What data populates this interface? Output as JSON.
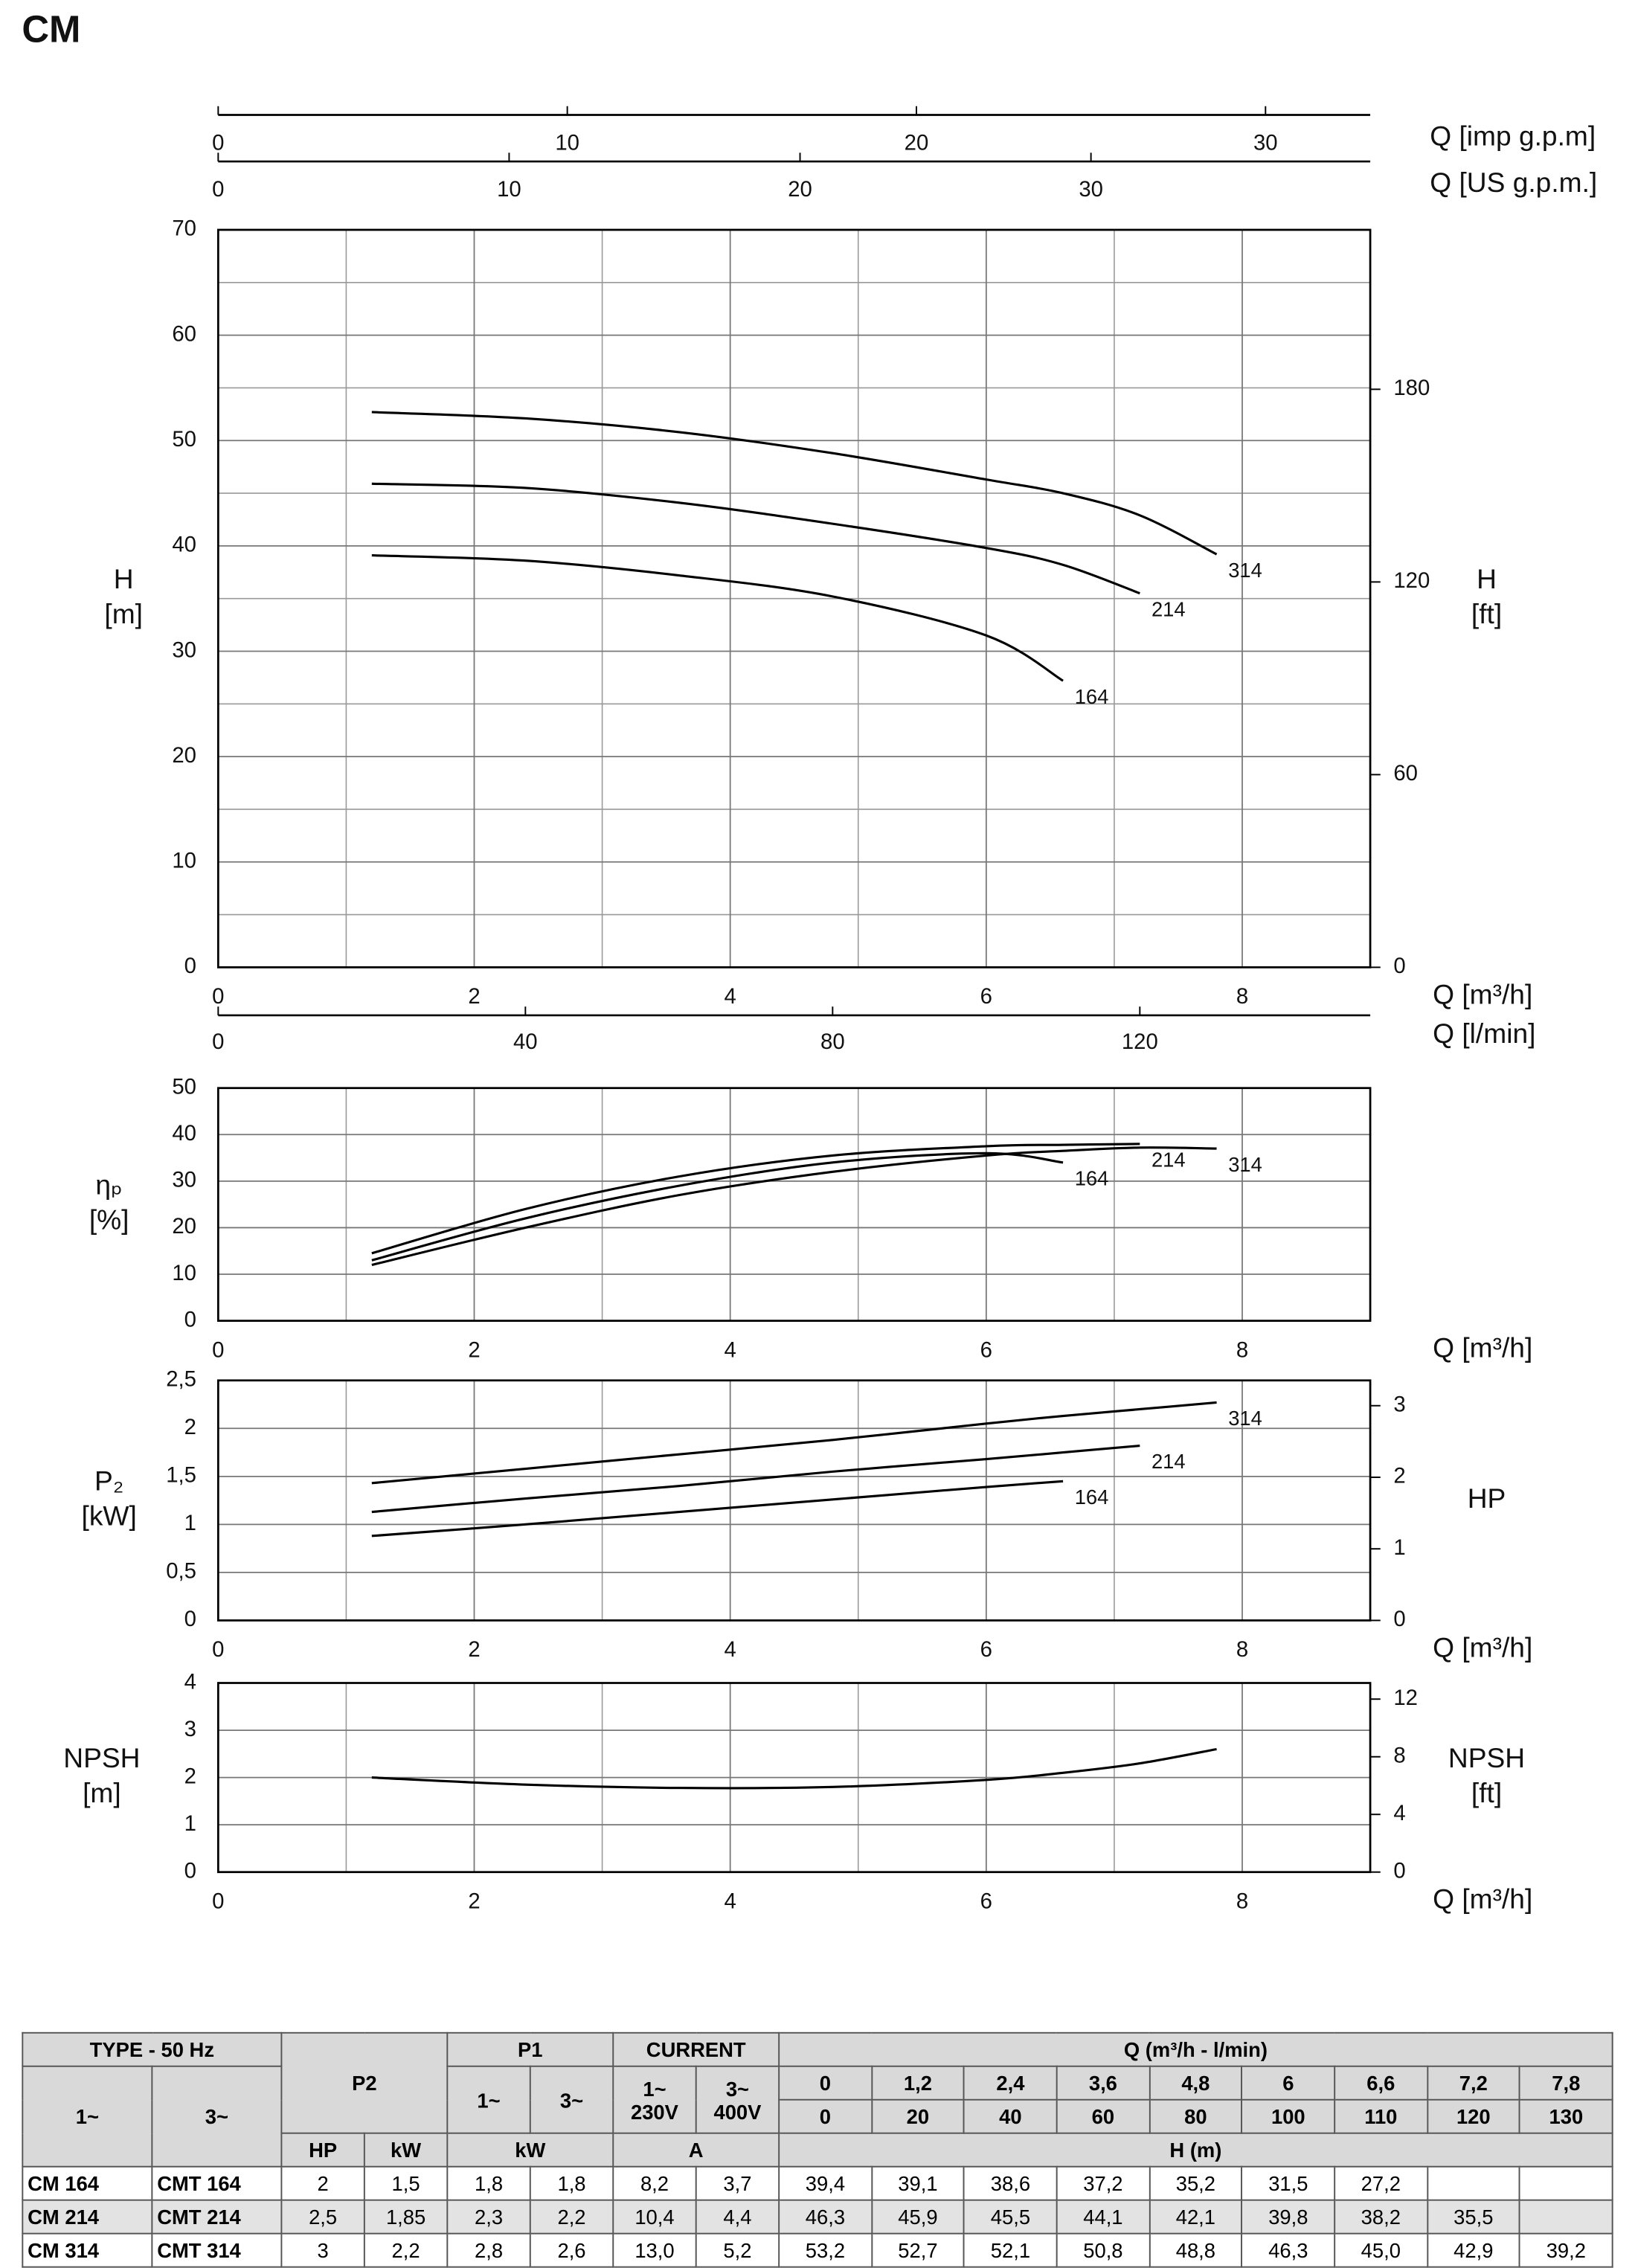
{
  "page_title": "CM",
  "chart_data": [
    {
      "type": "line",
      "xlabel": "Q [m³/h]",
      "ylabel": [
        "H",
        "[m]"
      ],
      "y2label": [
        "H",
        "[ft]"
      ],
      "top_axes": [
        {
          "label": "Q [imp g.p.m]",
          "lim": [
            0,
            33.0
          ],
          "ticks": [
            0,
            10,
            20,
            30
          ]
        },
        {
          "label": "Q [US g.p.m.]",
          "lim": [
            0,
            39.6
          ],
          "ticks": [
            0,
            10,
            20,
            30
          ]
        }
      ],
      "x2": {
        "label": "Q [l/min]",
        "lim": [
          0,
          150
        ],
        "ticks": [
          0,
          40,
          80,
          120
        ]
      },
      "xlim": [
        0,
        9
      ],
      "xticks": [
        0,
        2,
        4,
        6,
        8
      ],
      "x_minor_ticks": [
        1,
        3,
        5,
        7
      ],
      "ylim": [
        0,
        70
      ],
      "yticks": [
        0,
        10,
        20,
        30,
        40,
        50,
        60,
        70
      ],
      "y_minor_ticks": [
        5,
        15,
        25,
        35,
        45,
        55,
        65
      ],
      "y2lim": [
        0,
        229.66
      ],
      "y2ticks": [
        0,
        60,
        120,
        180
      ],
      "grid": true,
      "x": [
        1.2,
        2.4,
        3.6,
        4.8,
        6,
        6.6,
        7.2,
        7.8
      ],
      "series": [
        {
          "name": "164",
          "color": "#000000",
          "values": [
            39.1,
            38.6,
            37.2,
            35.2,
            31.5,
            27.2,
            null,
            null
          ]
        },
        {
          "name": "214",
          "color": "#000000",
          "values": [
            45.9,
            45.5,
            44.1,
            42.1,
            39.8,
            38.2,
            35.5,
            null
          ]
        },
        {
          "name": "314",
          "color": "#000000",
          "values": [
            52.7,
            52.1,
            50.8,
            48.8,
            46.3,
            45.0,
            42.9,
            39.2
          ]
        }
      ]
    },
    {
      "type": "line",
      "xlabel": "Q [m³/h]",
      "ylabel": [
        "ηₚ",
        "[%]"
      ],
      "xlim": [
        0,
        9
      ],
      "xticks": [
        0,
        2,
        4,
        6,
        8
      ],
      "x_minor_ticks": [
        1,
        3,
        5,
        7
      ],
      "ylim": [
        0,
        50
      ],
      "yticks": [
        0,
        10,
        20,
        30,
        40,
        50
      ],
      "grid": true,
      "x": [
        1.2,
        2.4,
        3.6,
        4.8,
        6,
        6.6,
        7.2,
        7.8
      ],
      "series": [
        {
          "name": "164",
          "color": "#000000",
          "values": [
            13,
            22,
            29,
            34,
            36,
            34,
            null,
            null
          ]
        },
        {
          "name": "214",
          "color": "#000000",
          "values": [
            14.5,
            24,
            31,
            35.5,
            37.5,
            37.8,
            38,
            null
          ]
        },
        {
          "name": "314",
          "color": "#000000",
          "values": [
            12,
            20,
            27,
            32,
            35.5,
            36.5,
            37.2,
            37
          ]
        }
      ]
    },
    {
      "type": "line",
      "xlabel": "Q [m³/h]",
      "ylabel": [
        "P₂",
        "[kW]"
      ],
      "y2label": [
        "HP"
      ],
      "xlim": [
        0,
        9
      ],
      "xticks": [
        0,
        2,
        4,
        6,
        8
      ],
      "x_minor_ticks": [
        1,
        3,
        5,
        7
      ],
      "ylim": [
        0,
        2.5
      ],
      "yticks": [
        0,
        {
          "value": 0.5,
          "label": "0,5"
        },
        1,
        {
          "value": 1.5,
          "label": "1,5"
        },
        2,
        {
          "value": 2.5,
          "label": "2,5"
        }
      ],
      "y2lim": [
        0,
        3.353
      ],
      "y2ticks": [
        0,
        1,
        2,
        3
      ],
      "grid": true,
      "x": [
        1.2,
        2.4,
        3.6,
        4.8,
        6,
        6.6,
        7.2,
        7.8
      ],
      "series": [
        {
          "name": "164",
          "color": "#000000",
          "values": [
            0.88,
            1.0,
            1.13,
            1.26,
            1.39,
            1.45,
            null,
            null
          ]
        },
        {
          "name": "214",
          "color": "#000000",
          "values": [
            1.13,
            1.27,
            1.4,
            1.55,
            1.68,
            1.75,
            1.82,
            null
          ]
        },
        {
          "name": "314",
          "color": "#000000",
          "values": [
            1.43,
            1.58,
            1.73,
            1.88,
            2.05,
            2.13,
            2.2,
            2.27
          ]
        }
      ]
    },
    {
      "type": "line",
      "xlabel": "Q [m³/h]",
      "ylabel": [
        "NPSH",
        "[m]"
      ],
      "y2label": [
        "NPSH",
        "[ft]"
      ],
      "xlim": [
        0,
        9
      ],
      "xticks": [
        0,
        2,
        4,
        6,
        8
      ],
      "x_minor_ticks": [
        1,
        3,
        5,
        7
      ],
      "ylim": [
        0,
        4
      ],
      "yticks": [
        0,
        1,
        2,
        3,
        4
      ],
      "y2lim": [
        0,
        13.12
      ],
      "y2ticks": [
        0,
        4,
        8,
        12
      ],
      "grid": true,
      "x": [
        1.2,
        2.4,
        3.6,
        4.8,
        6,
        6.6,
        7.2,
        7.8
      ],
      "series": [
        {
          "color": "#000000",
          "values": [
            2.0,
            1.85,
            1.78,
            1.8,
            1.95,
            2.1,
            2.3,
            2.6
          ]
        }
      ]
    }
  ],
  "table": {
    "type_header": "TYPE - 50 Hz",
    "p2_header": "P2",
    "p1_header": "P1",
    "current_header": "CURRENT",
    "q_header": "Q (m³/h - l/min)",
    "type_cols": [
      "1~",
      "3~"
    ],
    "p1_cols": [
      "1~",
      "3~"
    ],
    "current_cols": [
      [
        "1~",
        "230V"
      ],
      [
        "3~",
        "400V"
      ]
    ],
    "q_m3h": [
      "0",
      "1,2",
      "2,4",
      "3,6",
      "4,8",
      "6",
      "6,6",
      "7,2",
      "7,8"
    ],
    "q_lmin": [
      "0",
      "20",
      "40",
      "60",
      "80",
      "100",
      "110",
      "120",
      "130"
    ],
    "p2_units": [
      "HP",
      "kW"
    ],
    "p1_unit": "kW",
    "current_unit": "A",
    "h_unit": "H (m)",
    "rows": [
      [
        "CM 164",
        "CMT 164",
        "2",
        "1,5",
        "1,8",
        "1,8",
        "8,2",
        "3,7",
        "39,4",
        "39,1",
        "38,6",
        "37,2",
        "35,2",
        "31,5",
        "27,2"
      ],
      [
        "CM 214",
        "CMT 214",
        "2,5",
        "1,85",
        "2,3",
        "2,2",
        "10,4",
        "4,4",
        "46,3",
        "45,9",
        "45,5",
        "44,1",
        "42,1",
        "39,8",
        "38,2",
        "35,5"
      ],
      [
        "CM 314",
        "CMT 314",
        "3",
        "2,2",
        "2,8",
        "2,6",
        "13,0",
        "5,2",
        "53,2",
        "52,7",
        "52,1",
        "50,8",
        "48,8",
        "46,3",
        "45,0",
        "42,9",
        "39,2"
      ]
    ]
  }
}
